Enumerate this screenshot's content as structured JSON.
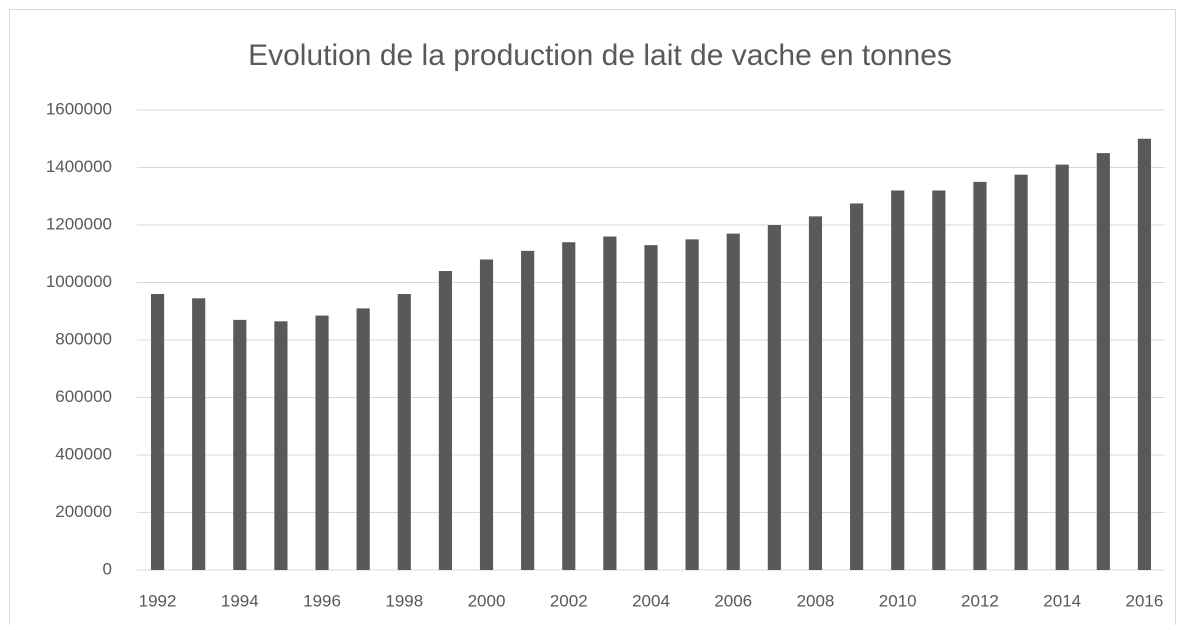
{
  "chart_data": {
    "type": "bar",
    "title": "Evolution de la production de lait de vache en tonnes",
    "categories": [
      "1992",
      null,
      "1994",
      null,
      "1996",
      null,
      "1998",
      null,
      "2000",
      null,
      "2002",
      null,
      "2004",
      null,
      "2006",
      null,
      "2008",
      null,
      "2010",
      null,
      "2012",
      null,
      "2014",
      null,
      "2016"
    ],
    "values": [
      960000,
      945000,
      870000,
      865000,
      885000,
      910000,
      960000,
      1040000,
      1080000,
      1110000,
      1140000,
      1160000,
      1130000,
      1150000,
      1170000,
      1200000,
      1230000,
      1275000,
      1320000,
      1320000,
      1350000,
      1375000,
      1410000,
      1450000,
      1500000
    ],
    "color": "#595959",
    "ylim": [
      0,
      1600000
    ],
    "yticks": [
      0,
      200000,
      400000,
      600000,
      800000,
      1000000,
      1200000,
      1400000,
      1600000
    ],
    "grid": true
  }
}
